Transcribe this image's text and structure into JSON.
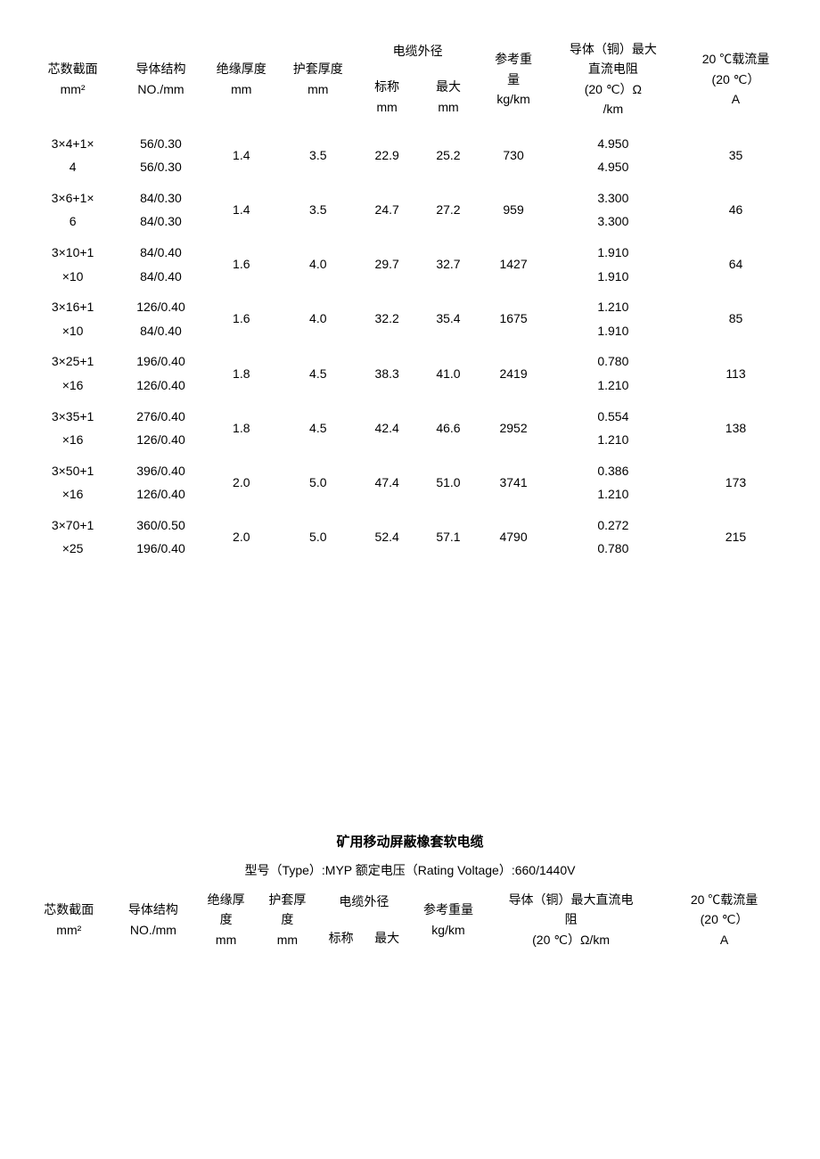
{
  "table1": {
    "columns": {
      "cross_section": {
        "l1": "芯数截面",
        "l2": "mm²"
      },
      "conductor": {
        "l1": "导体结构",
        "l2": "NO./mm"
      },
      "insulation": {
        "l1": "绝缘厚度",
        "l2": "mm"
      },
      "sheath": {
        "l1": "护套厚度",
        "l2": "mm"
      },
      "diameter": {
        "top": "电缆外径",
        "nom_l1": "标称",
        "nom_l2": "mm",
        "max_l1": "最大",
        "max_l2": "mm"
      },
      "weight": {
        "l1": "参考重",
        "l2": "量",
        "l3": "kg/km"
      },
      "resistance": {
        "l1": "导体（铜）最大",
        "l2": "直流电阻",
        "l3": "(20 ℃）Ω",
        "l4": "/km"
      },
      "ampacity": {
        "l1": "20 ℃载流量",
        "l2": "(20 ℃）",
        "l3": "A"
      }
    },
    "rows": [
      {
        "cs_a": "3×4+1×",
        "cs_b": "4",
        "cond_a": "56/0.30",
        "cond_b": "56/0.30",
        "ins": "1.4",
        "sh": "3.5",
        "nom": "22.9",
        "max": "25.2",
        "wt": "730",
        "r_a": "4.950",
        "r_b": "4.950",
        "amp": "35"
      },
      {
        "cs_a": "3×6+1×",
        "cs_b": "6",
        "cond_a": "84/0.30",
        "cond_b": "84/0.30",
        "ins": "1.4",
        "sh": "3.5",
        "nom": "24.7",
        "max": "27.2",
        "wt": "959",
        "r_a": "3.300",
        "r_b": "3.300",
        "amp": "46"
      },
      {
        "cs_a": "3×10+1",
        "cs_b": "×10",
        "cond_a": "84/0.40",
        "cond_b": "84/0.40",
        "ins": "1.6",
        "sh": "4.0",
        "nom": "29.7",
        "max": "32.7",
        "wt": "1427",
        "r_a": "1.910",
        "r_b": "1.910",
        "amp": "64"
      },
      {
        "cs_a": "3×16+1",
        "cs_b": "×10",
        "cond_a": "126/0.40",
        "cond_b": "84/0.40",
        "ins": "1.6",
        "sh": "4.0",
        "nom": "32.2",
        "max": "35.4",
        "wt": "1675",
        "r_a": "1.210",
        "r_b": "1.910",
        "amp": "85"
      },
      {
        "cs_a": "3×25+1",
        "cs_b": "×16",
        "cond_a": "196/0.40",
        "cond_b": "126/0.40",
        "ins": "1.8",
        "sh": "4.5",
        "nom": "38.3",
        "max": "41.0",
        "wt": "2419",
        "r_a": "0.780",
        "r_b": "1.210",
        "amp": "113"
      },
      {
        "cs_a": "3×35+1",
        "cs_b": "×16",
        "cond_a": "276/0.40",
        "cond_b": "126/0.40",
        "ins": "1.8",
        "sh": "4.5",
        "nom": "42.4",
        "max": "46.6",
        "wt": "2952",
        "r_a": "0.554",
        "r_b": "1.210",
        "amp": "138"
      },
      {
        "cs_a": "3×50+1",
        "cs_b": "×16",
        "cond_a": "396/0.40",
        "cond_b": "126/0.40",
        "ins": "2.0",
        "sh": "5.0",
        "nom": "47.4",
        "max": "51.0",
        "wt": "3741",
        "r_a": "0.386",
        "r_b": "1.210",
        "amp": "173"
      },
      {
        "cs_a": "3×70+1",
        "cs_b": "×25",
        "cond_a": "360/0.50",
        "cond_b": "196/0.40",
        "ins": "2.0",
        "sh": "5.0",
        "nom": "52.4",
        "max": "57.1",
        "wt": "4790",
        "r_a": "0.272",
        "r_b": "0.780",
        "amp": "215"
      }
    ],
    "col_widths": [
      "12%",
      "11%",
      "10%",
      "10%",
      "8%",
      "8%",
      "9%",
      "17%",
      "15%"
    ]
  },
  "section2": {
    "title": "矿用移动屏蔽橡套软电缆",
    "subtitle": "型号（Type）:MYP 额定电压（Rating Voltage）:660/1440V"
  },
  "table2": {
    "columns": {
      "cross_section": {
        "l1": "芯数截面",
        "l2": "mm²"
      },
      "conductor": {
        "l1": "导体结构",
        "l2": "NO./mm"
      },
      "insulation": {
        "l1": "绝缘厚",
        "l2": "度",
        "l3": "mm"
      },
      "sheath": {
        "l1": "护套厚",
        "l2": "度",
        "l3": "mm"
      },
      "diameter": {
        "top": "电缆外径",
        "nom": "标称",
        "max": "最大"
      },
      "weight": {
        "l1": "参考重量",
        "l2": "kg/km"
      },
      "resistance": {
        "l1": "导体（铜）最大直流电",
        "l2": "阻",
        "l3": "(20 ℃）Ω/km"
      },
      "ampacity": {
        "l1": "20 ℃载流量",
        "l2": "(20 ℃）",
        "l3": "A"
      }
    },
    "col_widths": [
      "11%",
      "11%",
      "8%",
      "8%",
      "6%",
      "6%",
      "10%",
      "22%",
      "18%"
    ]
  }
}
